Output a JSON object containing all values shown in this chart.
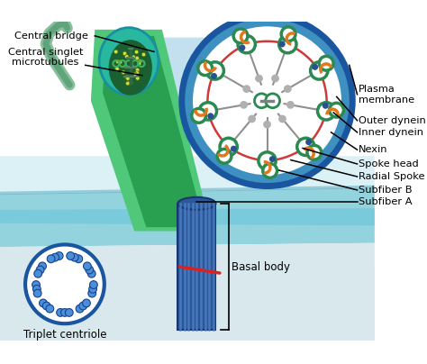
{
  "bg_color": "#ffffff",
  "fig_width": 4.74,
  "fig_height": 4.04,
  "dpi": 100,
  "labels": {
    "central_bridge": "Central bridge",
    "central_singlet": "Central singlet\nmicrotubules",
    "plasma_membrane": "Plasma\nmembrane",
    "outer_dynein": "Outer dynein",
    "inner_dynein": "Inner dynein",
    "nexin": "Nexin",
    "spoke_head": "Spoke head",
    "radial_spoke": "Radial Spoke",
    "subfiber_b": "Subfiber B",
    "subfiber_a": "Subfiber A",
    "basal_body": "Basal body",
    "triplet_centriole": "Triplet centriole"
  },
  "colors": {
    "white": "#ffffff",
    "light_blue_bg": "#c5e8f0",
    "mid_blue_membrane": "#6ec8dc",
    "dark_blue_ring": "#1a56a0",
    "blue_ring_fill": "#4090c0",
    "green_dark": "#1a7a3a",
    "green_mid": "#2db060",
    "green_light": "#60c87a",
    "teal_flagellum": "#20a898",
    "green_tube_outer": "#3aae6a",
    "green_tube_inner": "#1a7a3a",
    "green_ring": "#2a8a50",
    "orange_dynein": "#e07820",
    "blue_dynein": "#2a5090",
    "red_nexin": "#cc2222",
    "gray_spoke": "#909090",
    "gray_light": "#b0b0b0",
    "basal_blue": "#3060a8",
    "basal_stripe": "#4878c8",
    "yellow_dot": "#e0d020",
    "black": "#000000",
    "cell_bg_light": "#e0f4f8",
    "cell_bg_teal": "#80ccd8",
    "cell_bg_dark": "#50a8be",
    "gray_cell_floor": "#d8e8ec"
  }
}
